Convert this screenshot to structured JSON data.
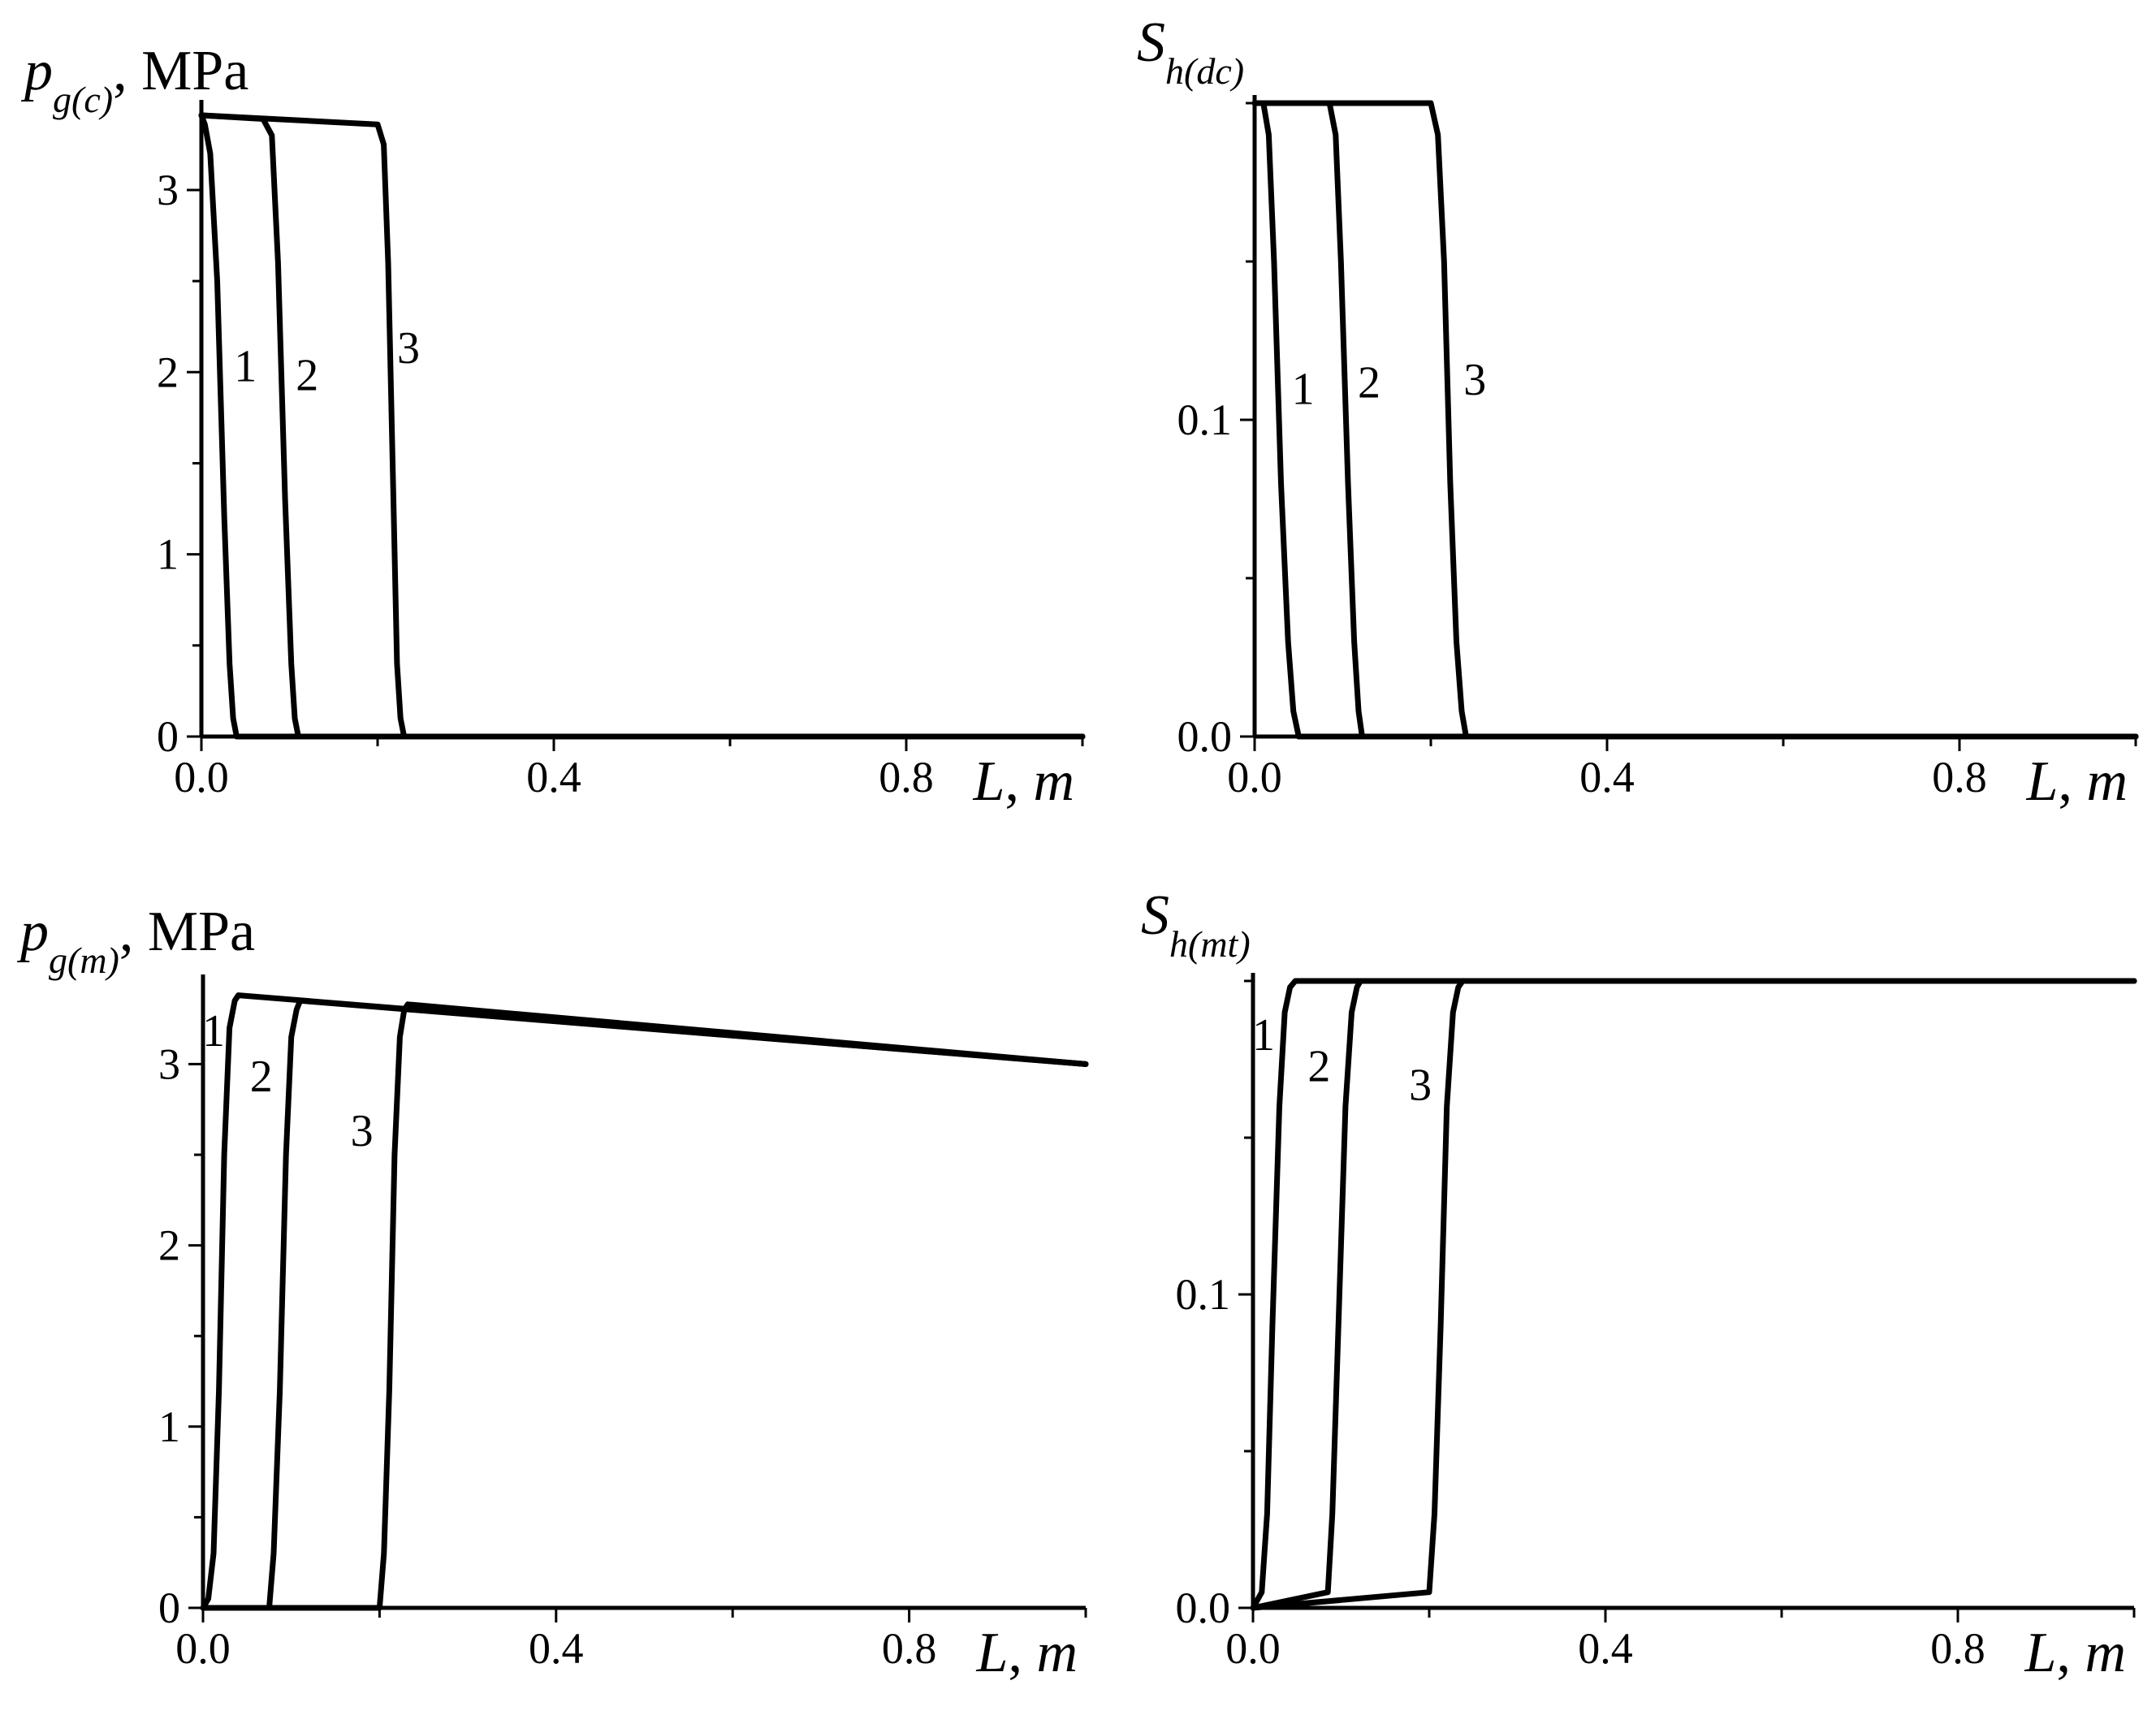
{
  "chart_data": [
    {
      "type": "line",
      "panel": "top-left",
      "ylabel": {
        "symbol": "p",
        "subscript": "g(c)",
        "unit": ", MPa"
      },
      "xlabel": {
        "symbol": "L",
        "unit": "m"
      },
      "xlim": [
        0,
        1.0
      ],
      "ylim": [
        0,
        3.45
      ],
      "xticks": [
        "0.0",
        "0.4",
        "0.8"
      ],
      "yticks": [
        "0",
        "1",
        "2",
        "3"
      ],
      "series": [
        {
          "name": "1",
          "label_at": [
            0.05,
            1.95
          ],
          "x": [
            0,
            0.004,
            0.01,
            0.018,
            0.026,
            0.032,
            0.036,
            0.04,
            1.0
          ],
          "y": [
            3.41,
            3.36,
            3.2,
            2.5,
            1.2,
            0.4,
            0.1,
            0,
            0
          ]
        },
        {
          "name": "2",
          "label_at": [
            0.12,
            1.9
          ],
          "x": [
            0,
            0.07,
            0.08,
            0.087,
            0.095,
            0.102,
            0.106,
            0.11,
            1.0
          ],
          "y": [
            3.41,
            3.39,
            3.3,
            2.6,
            1.3,
            0.4,
            0.1,
            0,
            0
          ]
        },
        {
          "name": "3",
          "label_at": [
            0.235,
            2.05
          ],
          "x": [
            0,
            0.2,
            0.207,
            0.212,
            0.218,
            0.222,
            0.226,
            0.23,
            1.0
          ],
          "y": [
            3.41,
            3.36,
            3.25,
            2.6,
            1.3,
            0.4,
            0.1,
            0,
            0
          ]
        }
      ]
    },
    {
      "type": "line",
      "panel": "top-right",
      "ylabel": {
        "symbol": "S",
        "subscript": "h(dc)",
        "unit": ""
      },
      "xlabel": {
        "symbol": "L",
        "unit": "m"
      },
      "xlim": [
        0,
        1.0
      ],
      "ylim": [
        0,
        0.2
      ],
      "xticks": [
        "0.0",
        "0.4",
        "0.8"
      ],
      "yticks": [
        "0.0",
        "0.1"
      ],
      "series": [
        {
          "name": "1",
          "label_at": [
            0.055,
            0.105
          ],
          "x": [
            0,
            0.01,
            0.016,
            0.022,
            0.03,
            0.038,
            0.044,
            0.05,
            1.0
          ],
          "y": [
            0.2,
            0.2,
            0.19,
            0.15,
            0.08,
            0.03,
            0.008,
            0,
            0
          ]
        },
        {
          "name": "2",
          "label_at": [
            0.13,
            0.107
          ],
          "x": [
            0,
            0.085,
            0.092,
            0.098,
            0.106,
            0.113,
            0.118,
            0.122,
            1.0
          ],
          "y": [
            0.2,
            0.2,
            0.19,
            0.15,
            0.08,
            0.03,
            0.008,
            0,
            0
          ]
        },
        {
          "name": "3",
          "label_at": [
            0.25,
            0.108
          ],
          "x": [
            0,
            0.2,
            0.208,
            0.215,
            0.222,
            0.229,
            0.235,
            0.24,
            1.0
          ],
          "y": [
            0.2,
            0.2,
            0.19,
            0.15,
            0.08,
            0.03,
            0.008,
            0,
            0
          ]
        }
      ]
    },
    {
      "type": "line",
      "panel": "bottom-left",
      "ylabel": {
        "symbol": "p",
        "subscript": "g(m)",
        "unit": ", MPa"
      },
      "xlabel": {
        "symbol": "L",
        "unit": "m"
      },
      "xlim": [
        0,
        1.0
      ],
      "ylim": [
        0,
        3.45
      ],
      "xticks": [
        "0.0",
        "0.4",
        "0.8"
      ],
      "yticks": [
        "0",
        "1",
        "2",
        "3"
      ],
      "series": [
        {
          "name": "1",
          "label_at": [
            0.012,
            3.1
          ],
          "x": [
            0,
            0.006,
            0.012,
            0.018,
            0.024,
            0.03,
            0.036,
            0.04,
            1.0
          ],
          "y": [
            0,
            0.05,
            0.3,
            1.2,
            2.5,
            3.2,
            3.35,
            3.38,
            3.0
          ]
        },
        {
          "name": "2",
          "label_at": [
            0.066,
            2.85
          ],
          "x": [
            0,
            0.075,
            0.08,
            0.087,
            0.094,
            0.1,
            0.106,
            0.11,
            1.0
          ],
          "y": [
            0,
            0,
            0.3,
            1.2,
            2.5,
            3.15,
            3.3,
            3.35,
            3.0
          ]
        },
        {
          "name": "3",
          "label_at": [
            0.18,
            2.55
          ],
          "x": [
            0,
            0.2,
            0.205,
            0.211,
            0.217,
            0.223,
            0.228,
            0.232,
            1.0
          ],
          "y": [
            0,
            0,
            0.3,
            1.2,
            2.5,
            3.15,
            3.3,
            3.33,
            3.0
          ]
        }
      ]
    },
    {
      "type": "line",
      "panel": "bottom-right",
      "ylabel": {
        "symbol": "S",
        "subscript": "h(mt)",
        "unit": ""
      },
      "xlabel": {
        "symbol": "L",
        "unit": "m"
      },
      "xlim": [
        0,
        1.0
      ],
      "ylim": [
        0,
        0.2
      ],
      "xticks": [
        "0.0",
        "0.4",
        "0.8"
      ],
      "yticks": [
        "0.0",
        "0.1"
      ],
      "series": [
        {
          "name": "1",
          "label_at": [
            0.012,
            0.178
          ],
          "x": [
            0,
            0.01,
            0.016,
            0.022,
            0.03,
            0.036,
            0.042,
            0.048,
            1.0
          ],
          "y": [
            0,
            0.005,
            0.03,
            0.09,
            0.16,
            0.19,
            0.198,
            0.2,
            0.2
          ]
        },
        {
          "name": "2",
          "label_at": [
            0.075,
            0.168
          ],
          "x": [
            0,
            0.085,
            0.09,
            0.097,
            0.105,
            0.112,
            0.118,
            0.122,
            1.0
          ],
          "y": [
            0,
            0.005,
            0.03,
            0.09,
            0.16,
            0.19,
            0.198,
            0.2,
            0.2
          ]
        },
        {
          "name": "3",
          "label_at": [
            0.19,
            0.162
          ],
          "x": [
            0,
            0.2,
            0.206,
            0.213,
            0.22,
            0.227,
            0.233,
            0.238,
            1.0
          ],
          "y": [
            0,
            0.005,
            0.03,
            0.09,
            0.16,
            0.19,
            0.198,
            0.2,
            0.2
          ]
        }
      ]
    }
  ]
}
